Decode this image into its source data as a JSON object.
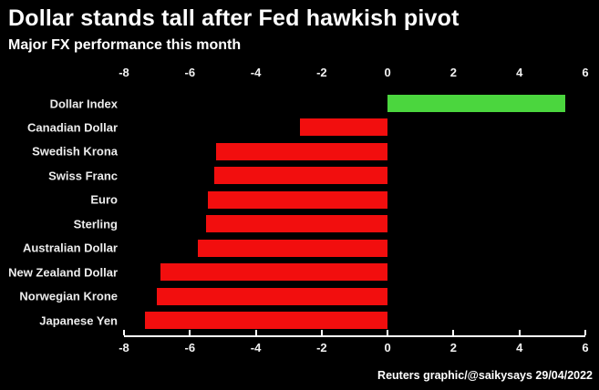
{
  "footer": {
    "credit": "Reuters graphic/@saikysays 29/04/2022"
  },
  "colors": {
    "background": "#000000",
    "positive_bar": "#4bd63e",
    "negative_bar": "#f20e0e",
    "text": "#ffffff",
    "axis": "#ffffff"
  },
  "chart_data": {
    "type": "bar",
    "orientation": "horizontal",
    "title": "Dollar stands tall after Fed hawkish pivot",
    "subtitle": "Major FX performance this month",
    "categories": [
      "Dollar Index",
      "Canadian Dollar",
      "Swedish Krona",
      "Swiss Franc",
      "Euro",
      "Sterling",
      "Australian Dollar",
      "New Zealand Dollar",
      "Norwegian Krone",
      "Japanese Yen"
    ],
    "values": [
      5.4,
      -2.65,
      -5.2,
      -5.25,
      -5.45,
      -5.5,
      -5.75,
      -6.9,
      -7.0,
      -7.35
    ],
    "xlabel": "",
    "ylabel": "",
    "xlim": [
      -8,
      6
    ],
    "x_ticks": [
      -8,
      -6,
      -4,
      -2,
      0,
      2,
      4,
      6
    ],
    "tick_label_positions": [
      "top",
      "bottom"
    ],
    "grid": false,
    "legend": false
  }
}
